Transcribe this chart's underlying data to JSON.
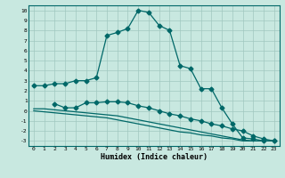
{
  "xlabel": "Humidex (Indice chaleur)",
  "xlim": [
    -0.5,
    23.5
  ],
  "ylim": [
    -3.5,
    10.5
  ],
  "yticks": [
    -3,
    -2,
    -1,
    0,
    1,
    2,
    3,
    4,
    5,
    6,
    7,
    8,
    9,
    10
  ],
  "xticks": [
    0,
    1,
    2,
    3,
    4,
    5,
    6,
    7,
    8,
    9,
    10,
    11,
    12,
    13,
    14,
    15,
    16,
    17,
    18,
    19,
    20,
    21,
    22,
    23
  ],
  "bg_color": "#c8e8e0",
  "grid_color": "#a0c8c0",
  "line_color": "#006868",
  "curve1_x": [
    0,
    1,
    2,
    3,
    4,
    5,
    6,
    7,
    8,
    9,
    10,
    11,
    12,
    13,
    14,
    15,
    16,
    17,
    18,
    19,
    20,
    21,
    22,
    23
  ],
  "curve1_y": [
    2.5,
    2.5,
    2.7,
    2.7,
    3.0,
    3.0,
    3.3,
    7.5,
    7.8,
    8.2,
    10.0,
    9.8,
    8.5,
    8.0,
    4.5,
    4.2,
    2.2,
    2.2,
    0.3,
    -1.3,
    -2.7,
    -2.8,
    -3.0,
    -3.0
  ],
  "curve2_x": [
    2,
    3,
    4,
    5,
    6,
    7,
    8,
    9,
    10,
    11,
    12,
    13,
    14,
    15,
    16,
    17,
    18,
    19,
    20,
    21,
    22,
    23
  ],
  "curve2_y": [
    0.7,
    0.3,
    0.3,
    0.8,
    0.8,
    0.9,
    0.9,
    0.8,
    0.5,
    0.3,
    0.0,
    -0.3,
    -0.5,
    -0.8,
    -1.0,
    -1.3,
    -1.5,
    -1.8,
    -2.0,
    -2.5,
    -2.8,
    -3.0
  ],
  "curve3_x": [
    0,
    1,
    2,
    3,
    4,
    5,
    6,
    7,
    8,
    9,
    10,
    11,
    12,
    13,
    14,
    15,
    16,
    17,
    18,
    19,
    20,
    21,
    22,
    23
  ],
  "curve3_y": [
    0.2,
    0.2,
    0.1,
    0.0,
    -0.1,
    -0.2,
    -0.3,
    -0.4,
    -0.5,
    -0.7,
    -0.9,
    -1.1,
    -1.3,
    -1.5,
    -1.7,
    -1.9,
    -2.1,
    -2.3,
    -2.5,
    -2.7,
    -2.9,
    -3.0,
    -3.0,
    -3.0
  ],
  "curve4_x": [
    0,
    1,
    2,
    3,
    4,
    5,
    6,
    7,
    8,
    9,
    10,
    11,
    12,
    13,
    14,
    15,
    16,
    17,
    18,
    19,
    20,
    21,
    22,
    23
  ],
  "curve4_y": [
    0.0,
    -0.1,
    -0.2,
    -0.3,
    -0.4,
    -0.5,
    -0.6,
    -0.7,
    -0.9,
    -1.1,
    -1.3,
    -1.5,
    -1.7,
    -1.9,
    -2.1,
    -2.2,
    -2.4,
    -2.5,
    -2.7,
    -2.8,
    -3.0,
    -3.0,
    -3.0,
    -3.0
  ]
}
